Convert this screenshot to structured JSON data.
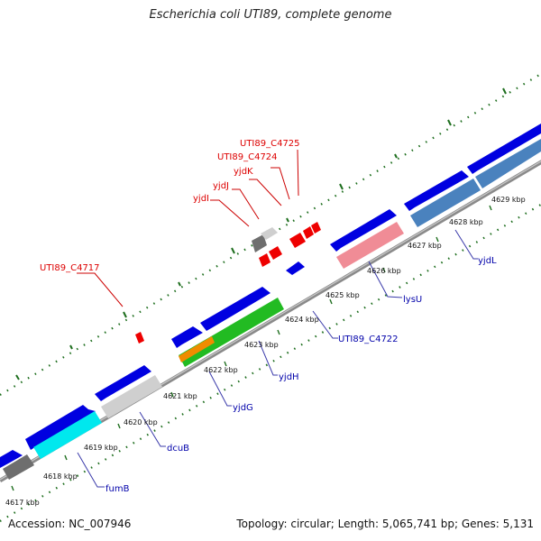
{
  "title": "Escherichia coli UTI89, complete genome",
  "footer": {
    "accession": "Accession: NC_007946",
    "summary": "Topology: circular; Length: 5,065,741 bp; Genes: 5,131"
  },
  "colors": {
    "backbone": "#8a8a8a",
    "tick_green": "#1e6e1e",
    "label_red": "#dd0000",
    "label_blue": "#0000aa",
    "leader": "#3a3aaa",
    "red_leader": "#cc0000"
  },
  "ticks": [
    "4617 kbp",
    "4618 kbp",
    "4619 kbp",
    "4620 kbp",
    "4621 kbp",
    "4622 kbp",
    "4623 kbp",
    "4624 kbp",
    "4625 kbp",
    "4626 kbp",
    "4627 kbp",
    "4628 kbp",
    "4629 kbp"
  ],
  "gene_labels": {
    "fumB": "fumB",
    "dcuB": "dcuB",
    "yjdG": "yjdG",
    "yjdH": "yjdH",
    "UTI89_C4722": "UTI89_C4722",
    "lysU": "lysU",
    "yjdL": "yjdL",
    "UTI89_C4717": "UTI89_C4717",
    "yjdI": "yjdI",
    "yjdJ": "yjdJ",
    "yjdK": "yjdK",
    "UTI89_C4724": "UTI89_C4724",
    "UTI89_C4725": "UTI89_C4725"
  },
  "gene_colors": {
    "blue": "#0000e0",
    "gray_dark": "#6e6e6e",
    "gray_light": "#cfcfcf",
    "cyan": "#00e8ee",
    "green": "#22bb22",
    "orange": "#f08c00",
    "pink": "#f08c96",
    "steel": "#4a82be",
    "red": "#ee0000"
  }
}
